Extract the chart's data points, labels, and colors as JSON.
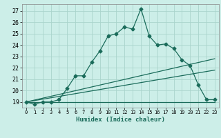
{
  "title": "",
  "xlabel": "Humidex (Indice chaleur)",
  "bg_color": "#cceee8",
  "grid_color": "#aad4cc",
  "line_color": "#1a6b5a",
  "xlim": [
    -0.5,
    23.5
  ],
  "ylim": [
    18.5,
    27.6
  ],
  "xticks": [
    0,
    1,
    2,
    3,
    4,
    5,
    6,
    7,
    8,
    9,
    10,
    11,
    12,
    13,
    14,
    15,
    16,
    17,
    18,
    19,
    20,
    21,
    22,
    23
  ],
  "yticks": [
    19,
    20,
    21,
    22,
    23,
    24,
    25,
    26,
    27
  ],
  "series": [
    {
      "x": [
        0,
        1,
        2,
        3,
        4,
        5,
        6,
        7,
        8,
        9,
        10,
        11,
        12,
        13,
        14,
        15,
        16,
        17,
        18,
        19,
        20,
        21,
        22,
        23
      ],
      "y": [
        19.0,
        18.8,
        19.0,
        19.0,
        19.2,
        20.2,
        21.3,
        21.3,
        22.5,
        23.5,
        24.8,
        25.0,
        25.6,
        25.4,
        27.2,
        24.8,
        24.0,
        24.1,
        23.7,
        22.7,
        22.2,
        20.5,
        19.2,
        19.2
      ]
    },
    {
      "x": [
        0,
        23
      ],
      "y": [
        19.0,
        22.8
      ]
    },
    {
      "x": [
        0,
        23
      ],
      "y": [
        19.0,
        21.8
      ]
    },
    {
      "x": [
        0,
        23
      ],
      "y": [
        19.0,
        19.0
      ]
    }
  ]
}
